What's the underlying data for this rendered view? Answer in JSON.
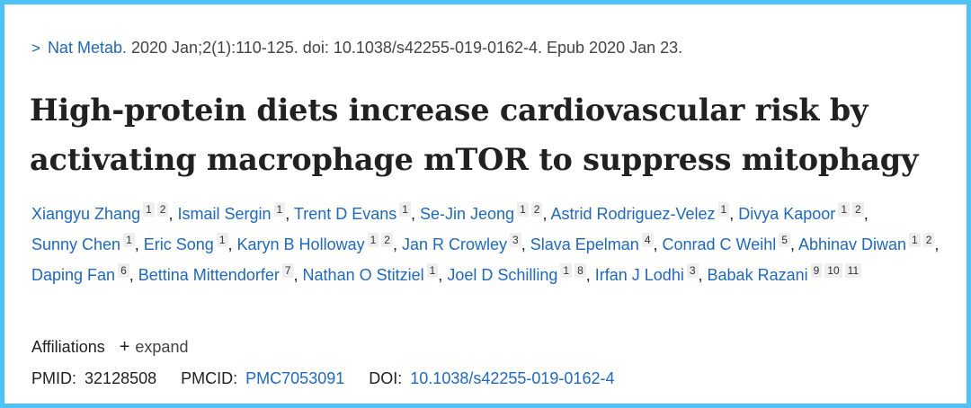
{
  "citation": {
    "chevron": ">",
    "journal": "Nat Metab.",
    "details": "2020 Jan;2(1):110-125. doi: 10.1038/s42255-019-0162-4. Epub 2020 Jan 23."
  },
  "title_lines": [
    "High-protein diets increase cardiovascular risk by",
    "activating macrophage mTOR to suppress mitophagy"
  ],
  "authors": [
    {
      "name": "Xiangyu Zhang",
      "affils": [
        "1",
        "2"
      ]
    },
    {
      "name": "Ismail Sergin",
      "affils": [
        "1"
      ]
    },
    {
      "name": "Trent D Evans",
      "affils": [
        "1"
      ]
    },
    {
      "name": "Se-Jin Jeong",
      "affils": [
        "1",
        "2"
      ]
    },
    {
      "name": "Astrid Rodriguez-Velez",
      "affils": [
        "1"
      ]
    },
    {
      "name": "Divya Kapoor",
      "affils": [
        "1",
        "2"
      ]
    },
    {
      "name": "Sunny Chen",
      "affils": [
        "1"
      ]
    },
    {
      "name": "Eric Song",
      "affils": [
        "1"
      ]
    },
    {
      "name": "Karyn B Holloway",
      "affils": [
        "1",
        "2"
      ]
    },
    {
      "name": "Jan R Crowley",
      "affils": [
        "3"
      ]
    },
    {
      "name": "Slava Epelman",
      "affils": [
        "4"
      ]
    },
    {
      "name": "Conrad C Weihl",
      "affils": [
        "5"
      ]
    },
    {
      "name": "Abhinav Diwan",
      "affils": [
        "1",
        "2"
      ]
    },
    {
      "name": "Daping Fan",
      "affils": [
        "6"
      ]
    },
    {
      "name": "Bettina Mittendorfer",
      "affils": [
        "7"
      ]
    },
    {
      "name": "Nathan O Stitziel",
      "affils": [
        "1"
      ]
    },
    {
      "name": "Joel D Schilling",
      "affils": [
        "1",
        "8"
      ]
    },
    {
      "name": "Irfan J Lodhi",
      "affils": [
        "3"
      ]
    },
    {
      "name": "Babak Razani",
      "affils": [
        "9",
        "10",
        "11"
      ]
    }
  ],
  "affiliations": {
    "label": "Affiliations",
    "toggle_symbol": "+",
    "toggle_label": "expand"
  },
  "identifiers": {
    "pmid_label": "PMID:",
    "pmid": "32128508",
    "pmcid_label": "PMCID:",
    "pmcid": "PMC7053091",
    "doi_label": "DOI:",
    "doi": "10.1038/s42255-019-0162-4"
  },
  "colors": {
    "link": "#2168b8",
    "border": "#4fc3f7",
    "text": "#212121"
  }
}
